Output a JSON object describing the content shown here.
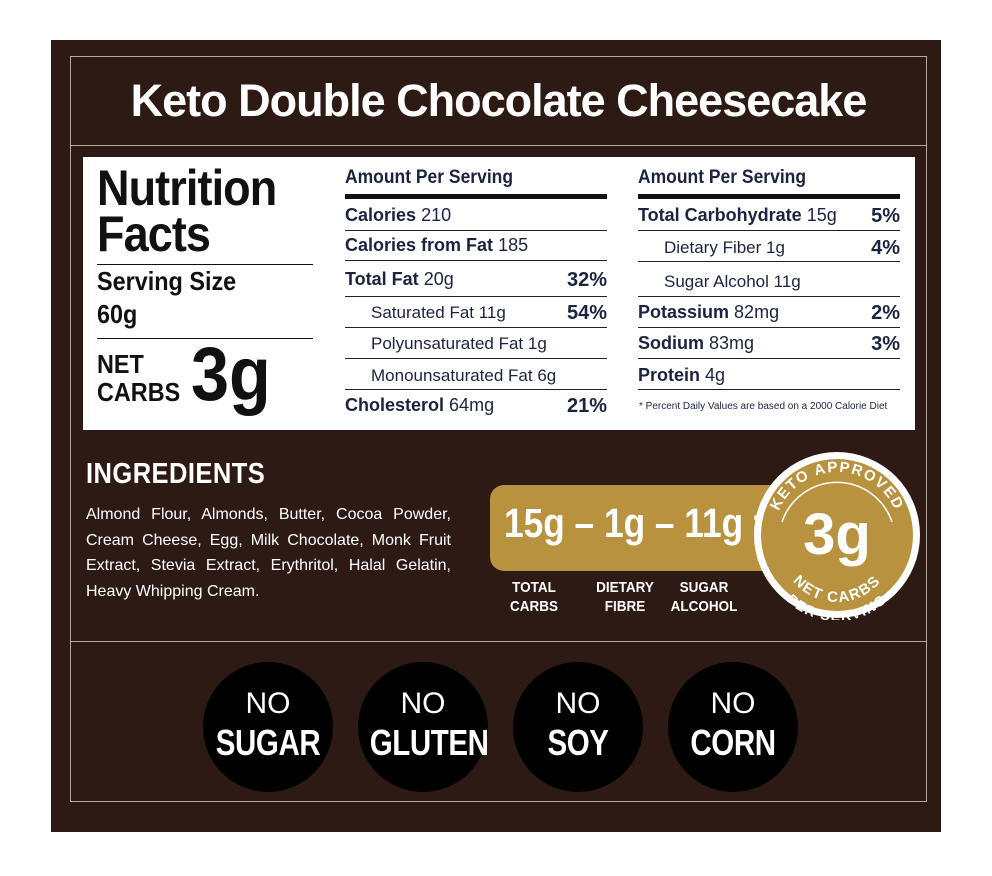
{
  "title": "Keto Double Chocolate Cheesecake",
  "nutrition": {
    "heading_line1": "Nutrition",
    "heading_line2": "Facts",
    "serving_label": "Serving Size",
    "serving_value": "60g",
    "net_label_line1": "NET",
    "net_label_line2": "CARBS",
    "net_value": "3g",
    "left_column": {
      "header": "Amount Per Serving",
      "rows": [
        {
          "label": "Calories",
          "value": "210",
          "pct": ""
        },
        {
          "label": "Calories from Fat",
          "value": "185",
          "pct": ""
        },
        {
          "label": "Total Fat",
          "value": "20g",
          "pct": "32%"
        },
        {
          "label": "Saturated Fat 11g",
          "value": "",
          "pct": "54%"
        },
        {
          "label": "Polyunsaturated Fat 1g",
          "value": "",
          "pct": ""
        },
        {
          "label": "Monounsaturated Fat 6g",
          "value": "",
          "pct": ""
        },
        {
          "label": "Cholesterol",
          "value": "64mg",
          "pct": "21%"
        }
      ]
    },
    "right_column": {
      "header": "Amount Per Serving",
      "rows": [
        {
          "label": "Total Carbohydrate",
          "value": "15g",
          "pct": "5%"
        },
        {
          "label": "Dietary Fiber 1g",
          "value": "",
          "pct": "4%"
        },
        {
          "label": "Sugar Alcohol 11g",
          "value": "",
          "pct": ""
        },
        {
          "label": "Potassium",
          "value": "82mg",
          "pct": "2%"
        },
        {
          "label": "Sodium",
          "value": "83mg",
          "pct": "3%"
        },
        {
          "label": "Protein",
          "value": "4g",
          "pct": ""
        }
      ]
    },
    "footnote": "* Percent Daily Values are based on a 2000 Calorie Diet"
  },
  "ingredients": {
    "title": "INGREDIENTS",
    "text": "Almond Flour, Almonds, Butter, Cocoa Powder, Cream Cheese, Egg, Milk Chocolate, Monk Fruit Extract, Stevia Extract, Erythritol, Halal Gelatin, Heavy Whipping Cream."
  },
  "equation": {
    "text": "15g – 1g – 11g =",
    "labels": [
      {
        "line1": "TOTAL",
        "line2": "CARBS"
      },
      {
        "line1": "DIETARY",
        "line2": "FIBRE"
      },
      {
        "line1": "SUGAR",
        "line2": "ALCOHOL"
      }
    ]
  },
  "badge": {
    "top_text": "KETO APPROVED",
    "value": "3g",
    "middle_text": "NET CARBS",
    "bottom_text": "PER SERVING"
  },
  "free_from": [
    {
      "no": "NO",
      "item": "SUGAR"
    },
    {
      "no": "NO",
      "item": "GLUTEN"
    },
    {
      "no": "NO",
      "item": "SOY"
    },
    {
      "no": "NO",
      "item": "CORN"
    }
  ],
  "colors": {
    "background": "#2e1a14",
    "gold": "#b8923e",
    "label_text": "#1b2340"
  }
}
